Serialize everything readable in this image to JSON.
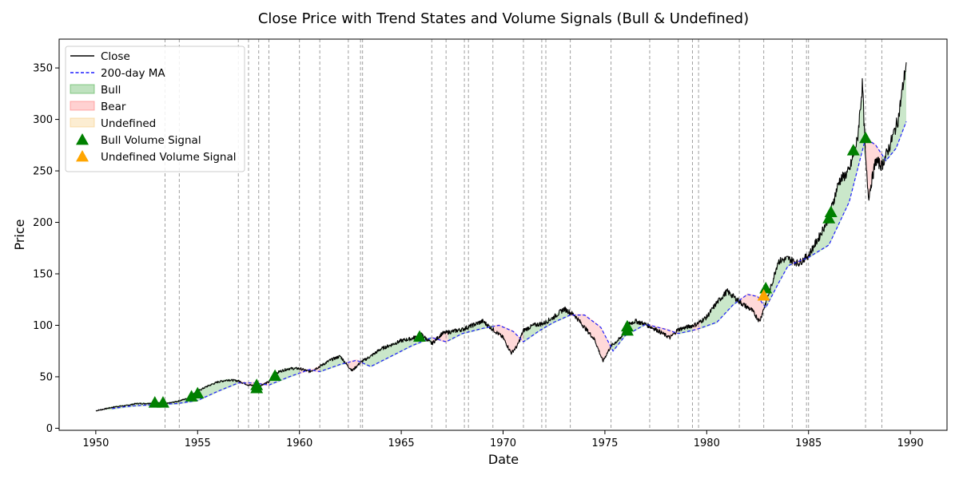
{
  "chart_data": {
    "type": "line",
    "title": "Close Price with Trend States and Volume Signals (Bull & Undefined)",
    "xlabel": "Date",
    "ylabel": "Price",
    "xlim": [
      1948.2,
      1991.8
    ],
    "ylim": [
      -2,
      378
    ],
    "xticks": [
      1950,
      1955,
      1960,
      1965,
      1970,
      1975,
      1980,
      1985,
      1990
    ],
    "yticks": [
      0,
      50,
      100,
      150,
      200,
      250,
      300,
      350
    ],
    "legend": {
      "position": "top-left",
      "entries": [
        {
          "label": "Close",
          "kind": "line",
          "color": "#000000"
        },
        {
          "label": "200-day MA",
          "kind": "dashed",
          "color": "#1f1fff"
        },
        {
          "label": "Bull",
          "kind": "patch",
          "color": "#2ca02c"
        },
        {
          "label": "Bear",
          "kind": "patch",
          "color": "#ff6666"
        },
        {
          "label": "Undefined",
          "kind": "patch",
          "color": "#f5c46b"
        },
        {
          "label": "Bull Volume Signal",
          "kind": "triangle",
          "color": "#008000"
        },
        {
          "label": "Undefined Volume Signal",
          "kind": "triangle",
          "color": "#ffa500"
        }
      ]
    },
    "colors": {
      "close": "#000000",
      "ma": "#1f1fff",
      "bull": "#2ca02c",
      "bear": "#ff6666",
      "undefined": "#f5c46b",
      "bull_signal": "#008000",
      "undefined_signal": "#ffa500",
      "vline": "#888888"
    },
    "close_series": {
      "x": [
        1950.0,
        1950.5,
        1951.0,
        1951.5,
        1952.0,
        1952.5,
        1953.0,
        1953.5,
        1954.0,
        1954.5,
        1955.0,
        1955.5,
        1956.0,
        1956.5,
        1957.0,
        1957.5,
        1958.0,
        1958.5,
        1959.0,
        1959.5,
        1960.0,
        1960.5,
        1961.0,
        1961.5,
        1962.0,
        1962.4,
        1962.6,
        1963.0,
        1963.5,
        1964.0,
        1964.5,
        1965.0,
        1965.5,
        1966.0,
        1966.5,
        1967.0,
        1967.5,
        1968.0,
        1968.5,
        1969.0,
        1969.5,
        1970.0,
        1970.4,
        1970.7,
        1971.0,
        1971.5,
        1972.0,
        1972.5,
        1973.0,
        1973.5,
        1974.0,
        1974.5,
        1974.9,
        1975.3,
        1975.8,
        1976.0,
        1976.5,
        1977.0,
        1977.5,
        1978.0,
        1978.2,
        1978.6,
        1979.0,
        1979.5,
        1980.0,
        1980.5,
        1981.0,
        1981.3,
        1981.8,
        1982.2,
        1982.6,
        1982.9,
        1983.2,
        1983.5,
        1984.0,
        1984.5,
        1985.0,
        1985.5,
        1986.0,
        1986.5,
        1987.0,
        1987.4,
        1987.65,
        1987.8,
        1987.95,
        1988.3,
        1988.6,
        1989.0,
        1989.4,
        1989.8
      ],
      "y": [
        17,
        19,
        21,
        22,
        24,
        24,
        25,
        24,
        26,
        29,
        36,
        41,
        45,
        47,
        46,
        42,
        41,
        45,
        55,
        58,
        58,
        55,
        60,
        66,
        70,
        60,
        56,
        64,
        70,
        77,
        81,
        85,
        87,
        91,
        82,
        92,
        94,
        96,
        100,
        104,
        96,
        88,
        73,
        80,
        95,
        100,
        102,
        108,
        116,
        110,
        98,
        86,
        65,
        80,
        88,
        100,
        104,
        101,
        96,
        90,
        88,
        96,
        98,
        101,
        108,
        122,
        133,
        128,
        120,
        115,
        104,
        122,
        140,
        162,
        165,
        160,
        168,
        185,
        205,
        240,
        250,
        280,
        335,
        260,
        225,
        260,
        255,
        275,
        300,
        355
      ]
    },
    "ma_series": {
      "x": [
        1950.8,
        1951.5,
        1952.0,
        1953.0,
        1954.0,
        1955.0,
        1956.0,
        1957.0,
        1957.8,
        1958.5,
        1959.5,
        1960.5,
        1961.0,
        1962.0,
        1962.8,
        1963.5,
        1964.5,
        1965.5,
        1966.5,
        1967.2,
        1968.0,
        1969.0,
        1969.8,
        1970.5,
        1971.0,
        1971.8,
        1972.5,
        1973.3,
        1974.0,
        1974.8,
        1975.4,
        1976.0,
        1977.0,
        1978.0,
        1978.6,
        1979.5,
        1980.5,
        1981.3,
        1982.0,
        1982.5,
        1982.9,
        1983.5,
        1984.0,
        1985.0,
        1986.0,
        1987.0,
        1987.8,
        1988.3,
        1988.8,
        1989.3,
        1989.8
      ],
      "y": [
        19,
        21,
        22,
        23,
        24,
        27,
        36,
        44,
        44,
        42,
        50,
        57,
        55,
        62,
        66,
        60,
        70,
        80,
        88,
        84,
        92,
        97,
        100,
        94,
        84,
        95,
        103,
        110,
        110,
        98,
        75,
        90,
        101,
        96,
        92,
        96,
        103,
        120,
        130,
        128,
        117,
        140,
        158,
        166,
        178,
        220,
        282,
        275,
        260,
        272,
        298
      ]
    },
    "band_shading": [
      {
        "state": "Bull",
        "x0": 1950.5,
        "x1": 1954.0
      },
      {
        "state": "Bull",
        "x0": 1954.0,
        "x1": 1957.0
      },
      {
        "state": "Bear",
        "x0": 1957.0,
        "x1": 1958.5
      },
      {
        "state": "Bull",
        "x0": 1958.5,
        "x1": 1960.0
      },
      {
        "state": "Bear",
        "x0": 1960.0,
        "x1": 1961.0
      },
      {
        "state": "Bull",
        "x0": 1961.0,
        "x1": 1962.3
      },
      {
        "state": "Bear",
        "x0": 1962.3,
        "x1": 1963.1
      },
      {
        "state": "Bull",
        "x0": 1963.1,
        "x1": 1966.5
      },
      {
        "state": "Bear",
        "x0": 1966.5,
        "x1": 1967.3
      },
      {
        "state": "Bull",
        "x0": 1967.3,
        "x1": 1969.5
      },
      {
        "state": "Bear",
        "x0": 1969.5,
        "x1": 1971.0
      },
      {
        "state": "Bull",
        "x0": 1971.0,
        "x1": 1973.3
      },
      {
        "state": "Bear",
        "x0": 1973.3,
        "x1": 1975.3
      },
      {
        "state": "Bull",
        "x0": 1975.3,
        "x1": 1977.2
      },
      {
        "state": "Bear",
        "x0": 1977.2,
        "x1": 1978.6
      },
      {
        "state": "Bull",
        "x0": 1978.6,
        "x1": 1979.3
      },
      {
        "state": "Bear",
        "x0": 1979.3,
        "x1": 1979.7
      },
      {
        "state": "Bull",
        "x0": 1979.7,
        "x1": 1981.6
      },
      {
        "state": "Bear",
        "x0": 1981.6,
        "x1": 1982.8
      },
      {
        "state": "Bull",
        "x0": 1982.8,
        "x1": 1984.2
      },
      {
        "state": "Bear",
        "x0": 1984.2,
        "x1": 1985.0
      },
      {
        "state": "Bull",
        "x0": 1985.0,
        "x1": 1987.8
      },
      {
        "state": "Bear",
        "x0": 1987.8,
        "x1": 1988.6
      },
      {
        "state": "Bull",
        "x0": 1988.6,
        "x1": 1989.8
      }
    ],
    "state_change_lines": [
      1953.4,
      1954.1,
      1957.0,
      1957.5,
      1958.0,
      1958.5,
      1960.0,
      1961.0,
      1962.4,
      1963.0,
      1963.1,
      1966.5,
      1967.2,
      1968.1,
      1968.3,
      1969.5,
      1971.0,
      1971.9,
      1972.1,
      1973.3,
      1975.3,
      1977.2,
      1978.6,
      1979.3,
      1979.6,
      1981.6,
      1982.8,
      1984.2,
      1984.9,
      1985.0,
      1987.8,
      1988.6
    ],
    "bull_volume_signals": [
      {
        "x": 1952.9,
        "y": 25
      },
      {
        "x": 1953.3,
        "y": 25
      },
      {
        "x": 1954.7,
        "y": 31
      },
      {
        "x": 1955.0,
        "y": 34
      },
      {
        "x": 1957.9,
        "y": 39
      },
      {
        "x": 1957.9,
        "y": 42
      },
      {
        "x": 1958.8,
        "y": 51
      },
      {
        "x": 1965.9,
        "y": 89
      },
      {
        "x": 1976.1,
        "y": 95
      },
      {
        "x": 1976.1,
        "y": 99
      },
      {
        "x": 1982.9,
        "y": 136
      },
      {
        "x": 1986.0,
        "y": 204
      },
      {
        "x": 1986.1,
        "y": 210
      },
      {
        "x": 1987.2,
        "y": 270
      },
      {
        "x": 1987.8,
        "y": 282
      }
    ],
    "undefined_volume_signals": [
      {
        "x": 1982.8,
        "y": 129
      }
    ]
  }
}
